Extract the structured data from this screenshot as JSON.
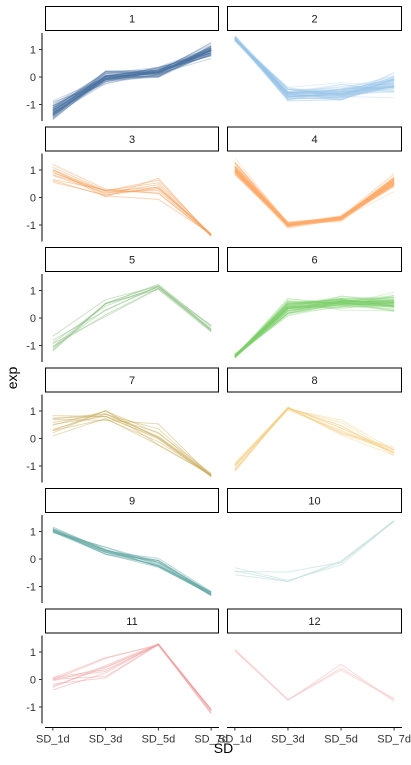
{
  "chart_data": {
    "type": "line",
    "xlabel": "SD",
    "ylabel": "exp",
    "categories": [
      "SD_1d",
      "SD_3d",
      "SD_5d",
      "SD_7d"
    ],
    "yticks": [
      -1,
      0,
      1
    ],
    "ylim": [
      -1.6,
      1.6
    ],
    "layout": {
      "columns": 2,
      "rows": 6
    },
    "panels": [
      {
        "label": "1",
        "color": "#4a74a3",
        "count": 60,
        "mean": [
          -1.25,
          0.0,
          0.2,
          0.95
        ],
        "spread": [
          0.25,
          0.2,
          0.2,
          0.2
        ]
      },
      {
        "label": "2",
        "color": "#9cc6e8",
        "count": 60,
        "mean": [
          1.4,
          -0.6,
          -0.6,
          -0.2
        ],
        "spread": [
          0.08,
          0.25,
          0.25,
          0.35
        ]
      },
      {
        "label": "3",
        "color": "#f5a05a",
        "count": 12,
        "mean": [
          0.85,
          0.15,
          0.35,
          -1.35
        ],
        "spread": [
          0.3,
          0.2,
          0.35,
          0.08
        ]
      },
      {
        "label": "4",
        "color": "#ffab6a",
        "count": 60,
        "mean": [
          1.05,
          -1.0,
          -0.75,
          0.55
        ],
        "spread": [
          0.2,
          0.08,
          0.08,
          0.2
        ]
      },
      {
        "label": "5",
        "color": "#8fc285",
        "count": 10,
        "mean": [
          -1.0,
          0.55,
          1.1,
          -0.35
        ],
        "spread": [
          0.25,
          0.35,
          0.2,
          0.25
        ]
      },
      {
        "label": "6",
        "color": "#7ccf6a",
        "count": 60,
        "mean": [
          -1.4,
          0.4,
          0.55,
          0.55
        ],
        "spread": [
          0.08,
          0.3,
          0.2,
          0.25
        ]
      },
      {
        "label": "7",
        "color": "#c9ad5c",
        "count": 12,
        "mean": [
          0.45,
          0.85,
          0.1,
          -1.35
        ],
        "spread": [
          0.4,
          0.2,
          0.3,
          0.08
        ]
      },
      {
        "label": "8",
        "color": "#f3d188",
        "count": 12,
        "mean": [
          -1.05,
          1.1,
          0.45,
          -0.5
        ],
        "spread": [
          0.2,
          0.1,
          0.3,
          0.25
        ]
      },
      {
        "label": "9",
        "color": "#5fa6a2",
        "count": 15,
        "mean": [
          1.05,
          0.3,
          -0.15,
          -1.25
        ],
        "spread": [
          0.1,
          0.15,
          0.2,
          0.1
        ]
      },
      {
        "label": "10",
        "color": "#bfe0dc",
        "count": 4,
        "mean": [
          -0.45,
          -0.75,
          -0.2,
          1.4
        ],
        "spread": [
          0.15,
          0.2,
          0.2,
          0.05
        ]
      },
      {
        "label": "11",
        "color": "#f0a0a0",
        "count": 10,
        "mean": [
          -0.2,
          0.3,
          1.25,
          -1.15
        ],
        "spread": [
          0.3,
          0.35,
          0.05,
          0.08
        ]
      },
      {
        "label": "12",
        "color": "#f7c4c4",
        "count": 3,
        "mean": [
          1.1,
          -0.75,
          0.35,
          -0.75
        ],
        "spread": [
          0.2,
          0.05,
          0.3,
          0.1
        ]
      }
    ]
  }
}
